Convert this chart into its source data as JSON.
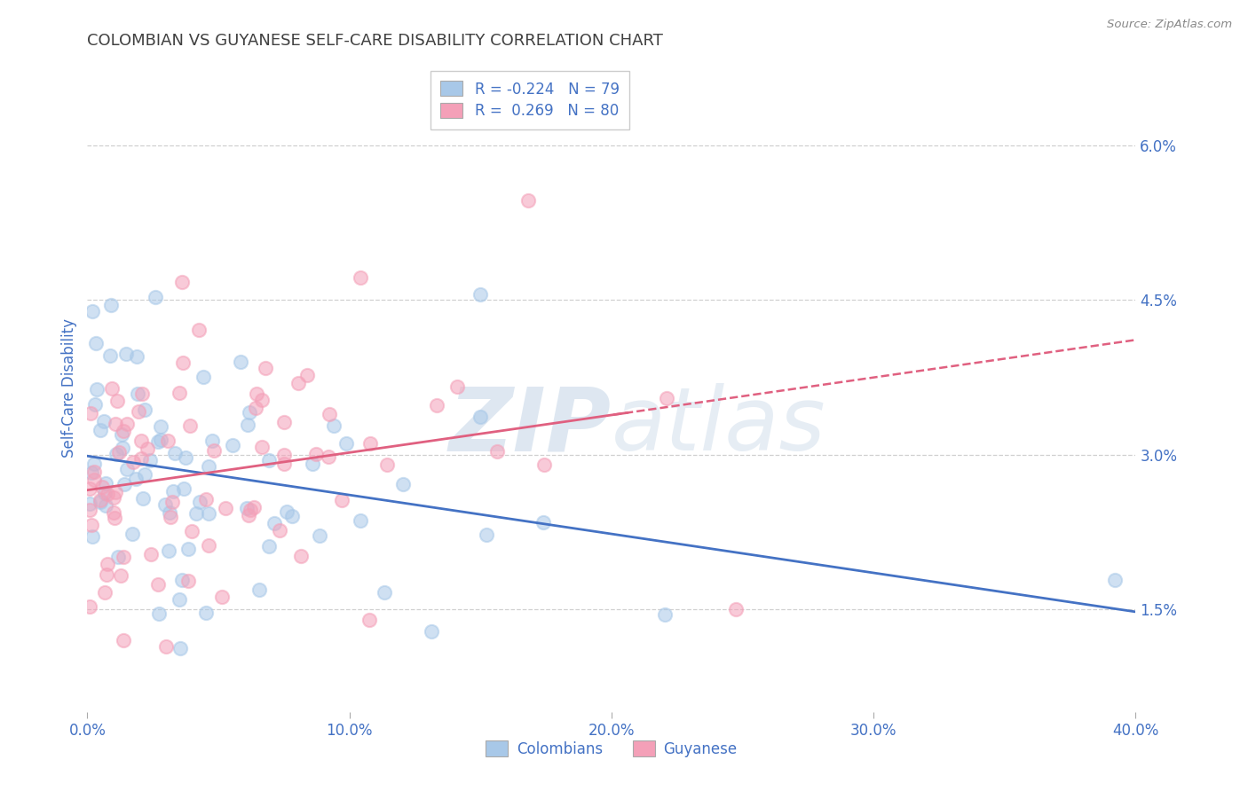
{
  "title": "COLOMBIAN VS GUYANESE SELF-CARE DISABILITY CORRELATION CHART",
  "source": "Source: ZipAtlas.com",
  "ylabel": "Self-Care Disability",
  "xlim": [
    0.0,
    0.4
  ],
  "ylim": [
    0.005,
    0.068
  ],
  "yticks": [
    0.015,
    0.03,
    0.045,
    0.06
  ],
  "ytick_labels": [
    "1.5%",
    "3.0%",
    "4.5%",
    "6.0%"
  ],
  "xticks": [
    0.0,
    0.1,
    0.2,
    0.3,
    0.4
  ],
  "xtick_labels": [
    "0.0%",
    "10.0%",
    "20.0%",
    "30.0%",
    "40.0%"
  ],
  "colombian_R": -0.224,
  "colombian_N": 79,
  "guyanese_R": 0.269,
  "guyanese_N": 80,
  "colombian_color": "#A8C8E8",
  "guyanese_color": "#F4A0B8",
  "colombian_line_color": "#4472C4",
  "guyanese_line_color": "#E06080",
  "background_color": "#ffffff",
  "title_color": "#404040",
  "axis_label_color": "#4472C4",
  "grid_color": "#d0d0d0",
  "legend_color": "#4472C4"
}
